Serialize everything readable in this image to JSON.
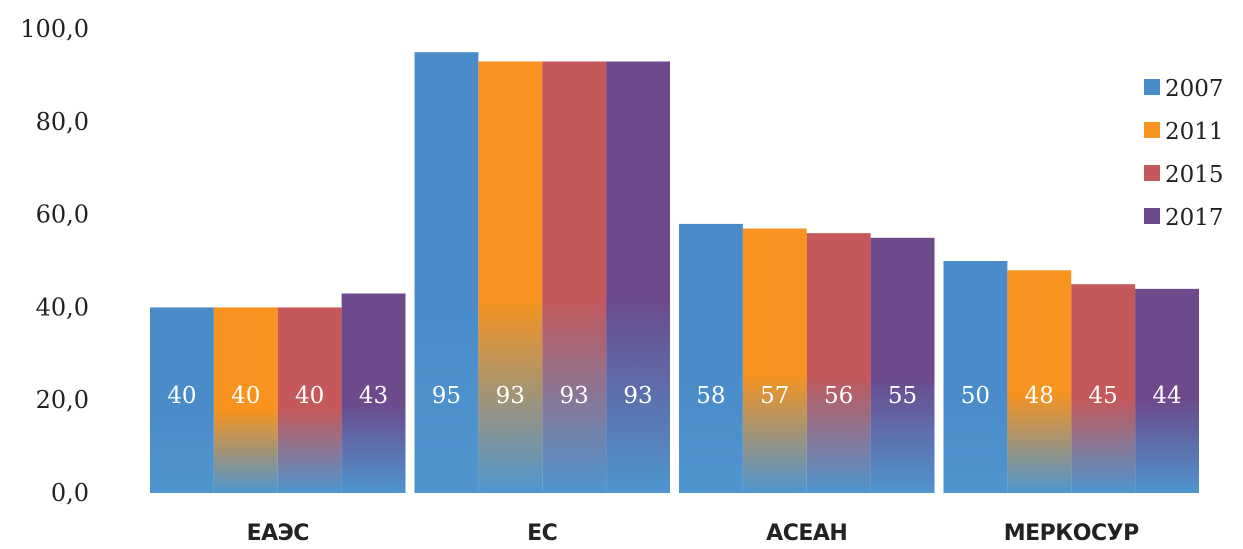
{
  "chart_data": {
    "type": "bar",
    "title": "",
    "xlabel": "",
    "ylabel": "",
    "ylim": [
      0,
      100
    ],
    "yticks": [
      "0,0",
      "20,0",
      "40,0",
      "60,0",
      "80,0",
      "100,0"
    ],
    "categories": [
      "ЕАЭС",
      "ЕС",
      "АСЕАН",
      "МЕРКОСУР"
    ],
    "series": [
      {
        "name": "2007",
        "values": [
          40,
          95,
          58,
          50
        ],
        "labels": [
          "40",
          "95",
          "58",
          "50"
        ],
        "color": "#4a8bc9"
      },
      {
        "name": "2011",
        "values": [
          40,
          93,
          57,
          48
        ],
        "labels": [
          "40",
          "93",
          "57",
          "48"
        ],
        "color": "#f7931e"
      },
      {
        "name": "2015",
        "values": [
          40,
          93,
          56,
          45
        ],
        "labels": [
          "40",
          "93",
          "56",
          "45"
        ],
        "color": "#c4585a"
      },
      {
        "name": "2017",
        "values": [
          43,
          93,
          55,
          44
        ],
        "labels": [
          "43",
          "93",
          "55",
          "44"
        ],
        "color": "#6c4a8c"
      }
    ],
    "bar_gradient_bottom": "#4e95cf",
    "legend_position": "right",
    "grid": false
  }
}
